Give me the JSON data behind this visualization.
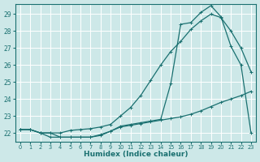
{
  "xlabel": "Humidex (Indice chaleur)",
  "bg_color": "#cde8e8",
  "line_color": "#1a7070",
  "grid_color": "#ffffff",
  "xlim_min": -0.5,
  "xlim_max": 23.5,
  "ylim_min": 21.5,
  "ylim_max": 29.6,
  "xticks": [
    0,
    1,
    2,
    3,
    4,
    5,
    6,
    7,
    8,
    9,
    10,
    11,
    12,
    13,
    14,
    15,
    16,
    17,
    18,
    19,
    20,
    21,
    22,
    23
  ],
  "yticks": [
    22,
    23,
    24,
    25,
    26,
    27,
    28,
    29
  ],
  "line1_x": [
    0,
    1,
    2,
    3,
    4,
    5,
    6,
    7,
    8,
    9,
    10,
    11,
    12,
    13,
    14,
    15,
    16,
    17,
    18,
    19,
    20,
    21,
    22,
    23
  ],
  "line1_y": [
    22.2,
    22.2,
    22.0,
    21.75,
    21.75,
    21.75,
    21.75,
    21.75,
    21.85,
    22.1,
    22.35,
    22.45,
    22.55,
    22.65,
    22.75,
    22.85,
    22.95,
    23.1,
    23.3,
    23.55,
    23.8,
    24.0,
    24.2,
    24.45
  ],
  "line2_x": [
    0,
    1,
    2,
    3,
    4,
    5,
    6,
    7,
    8,
    9,
    10,
    11,
    12,
    13,
    14,
    15,
    16,
    17,
    18,
    19,
    20,
    21,
    22,
    23
  ],
  "line2_y": [
    22.2,
    22.2,
    22.0,
    22.0,
    22.0,
    22.15,
    22.2,
    22.25,
    22.35,
    22.5,
    23.0,
    23.5,
    24.2,
    25.1,
    26.0,
    26.8,
    27.4,
    28.1,
    28.6,
    29.0,
    28.8,
    28.0,
    27.0,
    25.6
  ],
  "line3_x": [
    0,
    1,
    2,
    3,
    4,
    5,
    6,
    7,
    8,
    9,
    10,
    11,
    12,
    13,
    14,
    15,
    16,
    17,
    18,
    19,
    20,
    21,
    22,
    23
  ],
  "line3_y": [
    22.2,
    22.2,
    22.0,
    22.0,
    21.75,
    21.75,
    21.75,
    21.75,
    21.9,
    22.1,
    22.4,
    22.5,
    22.6,
    22.7,
    22.8,
    24.9,
    28.4,
    28.5,
    29.1,
    29.5,
    28.85,
    27.1,
    26.0,
    22.0
  ],
  "markersize": 2.0,
  "linewidth": 0.9
}
